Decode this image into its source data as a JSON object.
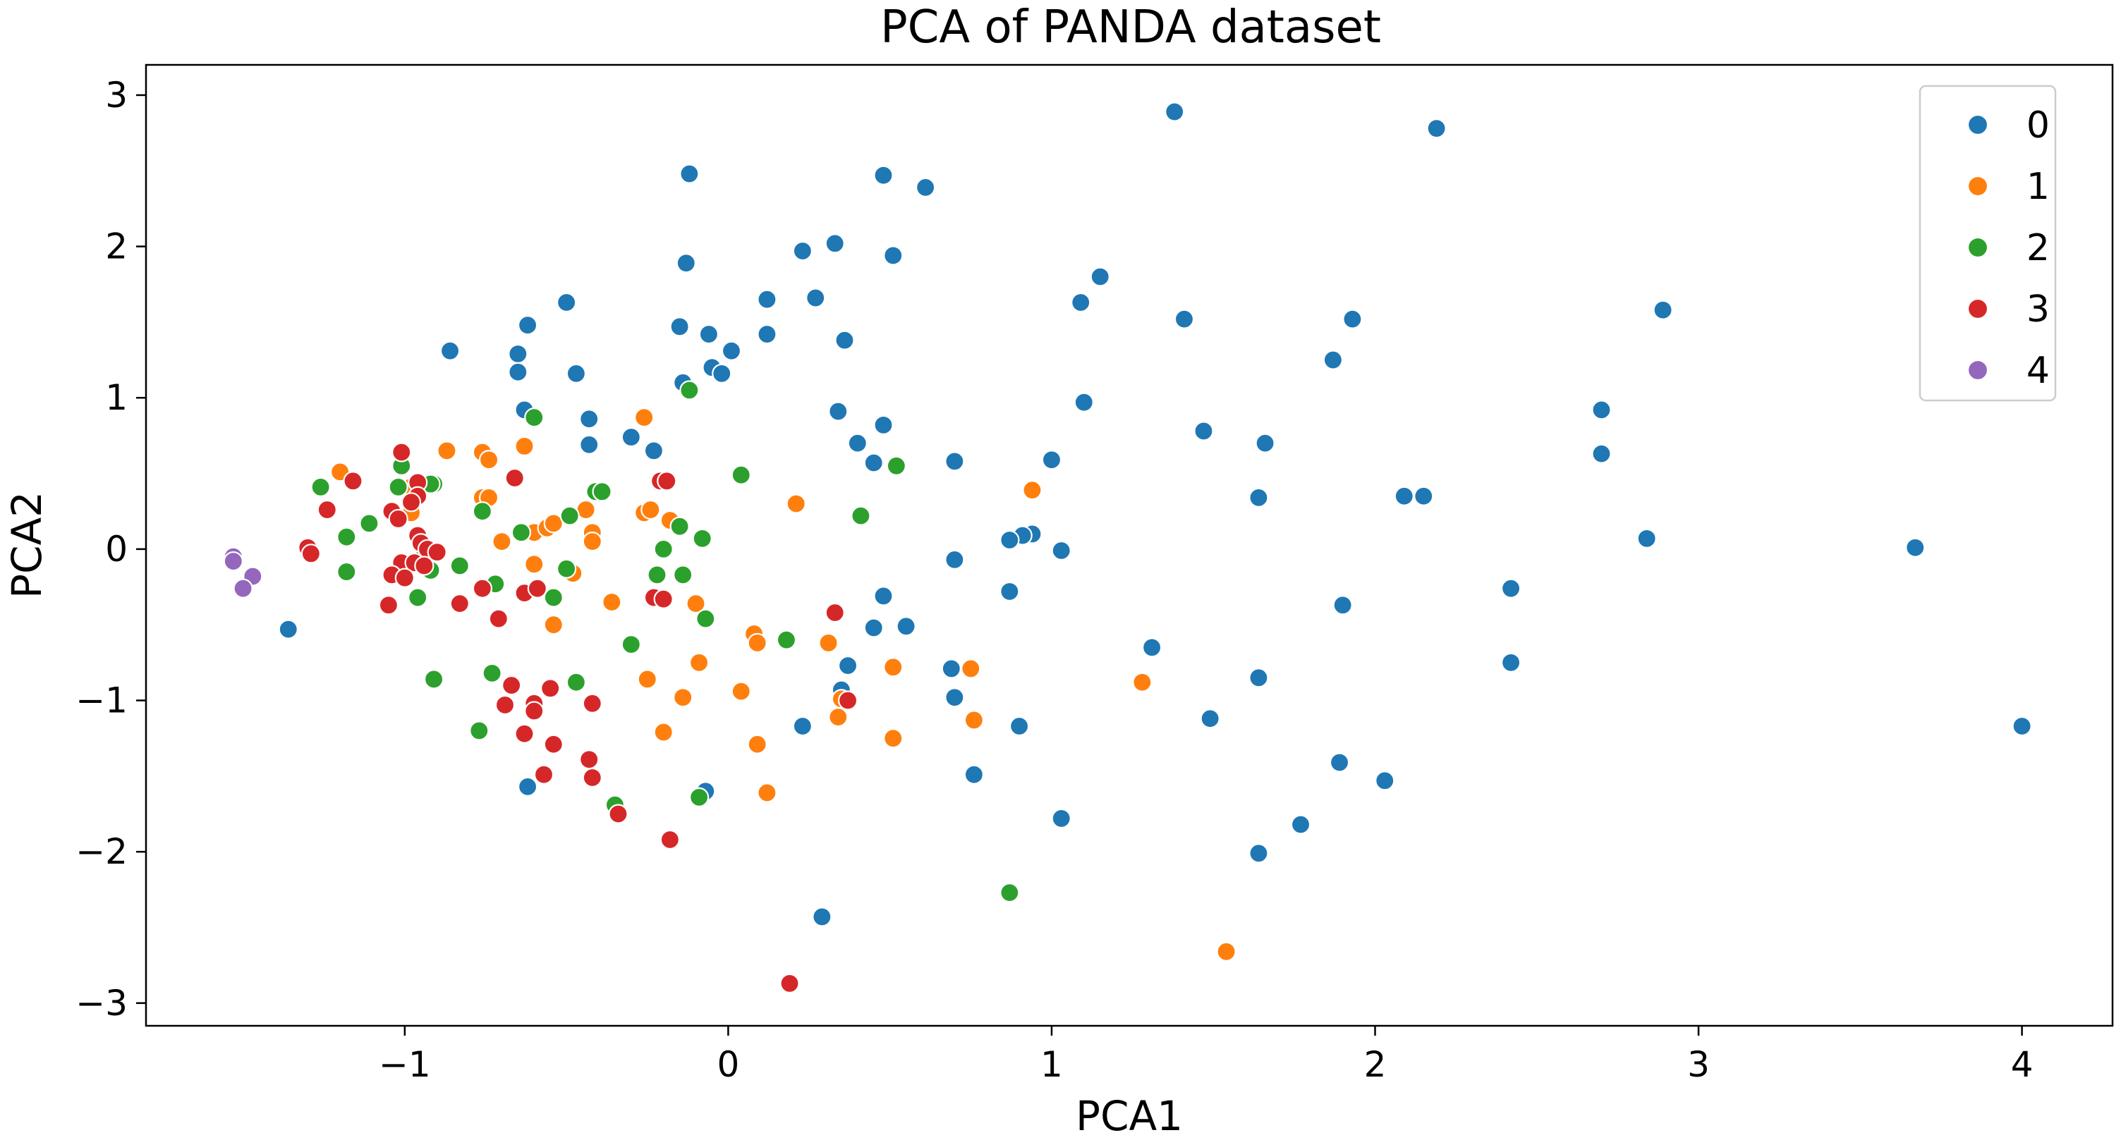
{
  "chart_data": {
    "type": "scatter",
    "title": "PCA of PANDA dataset",
    "xlabel": "PCA1",
    "ylabel": "PCA2",
    "xlim": [
      -1.8,
      4.28
    ],
    "ylim": [
      -3.15,
      3.2
    ],
    "xticks": [
      -1,
      0,
      1,
      2,
      3,
      4
    ],
    "yticks": [
      -3,
      -2,
      -1,
      0,
      1,
      2,
      3
    ],
    "grid": false,
    "legend_position": "top-right",
    "series": [
      {
        "name": "0",
        "color": "#1f77b4",
        "points": [
          [
            1.38,
            2.89
          ],
          [
            2.19,
            2.78
          ],
          [
            -0.12,
            2.48
          ],
          [
            0.48,
            2.47
          ],
          [
            0.61,
            2.39
          ],
          [
            0.33,
            2.02
          ],
          [
            0.23,
            1.97
          ],
          [
            0.51,
            1.94
          ],
          [
            -0.13,
            1.89
          ],
          [
            1.15,
            1.8
          ],
          [
            0.12,
            1.65
          ],
          [
            0.27,
            1.66
          ],
          [
            -0.5,
            1.63
          ],
          [
            1.09,
            1.63
          ],
          [
            2.89,
            1.58
          ],
          [
            1.41,
            1.52
          ],
          [
            1.93,
            1.52
          ],
          [
            -0.62,
            1.48
          ],
          [
            -0.15,
            1.47
          ],
          [
            -0.06,
            1.42
          ],
          [
            0.12,
            1.42
          ],
          [
            0.36,
            1.38
          ],
          [
            -0.86,
            1.31
          ],
          [
            0.01,
            1.31
          ],
          [
            -0.65,
            1.29
          ],
          [
            1.87,
            1.25
          ],
          [
            -0.05,
            1.2
          ],
          [
            -0.65,
            1.17
          ],
          [
            -0.47,
            1.16
          ],
          [
            -0.02,
            1.16
          ],
          [
            -0.14,
            1.1
          ],
          [
            2.7,
            0.92
          ],
          [
            1.1,
            0.97
          ],
          [
            -0.63,
            0.92
          ],
          [
            0.34,
            0.91
          ],
          [
            -0.43,
            0.86
          ],
          [
            0.48,
            0.82
          ],
          [
            1.47,
            0.78
          ],
          [
            -0.3,
            0.74
          ],
          [
            0.4,
            0.7
          ],
          [
            1.66,
            0.7
          ],
          [
            -0.43,
            0.69
          ],
          [
            -0.23,
            0.65
          ],
          [
            2.7,
            0.63
          ],
          [
            1.0,
            0.59
          ],
          [
            0.7,
            0.58
          ],
          [
            0.45,
            0.57
          ],
          [
            1.64,
            0.34
          ],
          [
            2.09,
            0.35
          ],
          [
            2.15,
            0.35
          ],
          [
            0.94,
            0.1
          ],
          [
            0.91,
            0.09
          ],
          [
            0.87,
            0.06
          ],
          [
            2.84,
            0.07
          ],
          [
            3.67,
            0.01
          ],
          [
            1.03,
            -0.01
          ],
          [
            0.7,
            -0.07
          ],
          [
            0.87,
            -0.28
          ],
          [
            2.42,
            -0.26
          ],
          [
            0.48,
            -0.31
          ],
          [
            1.9,
            -0.37
          ],
          [
            0.45,
            -0.52
          ],
          [
            0.55,
            -0.51
          ],
          [
            -1.36,
            -0.53
          ],
          [
            1.31,
            -0.65
          ],
          [
            0.37,
            -0.77
          ],
          [
            0.69,
            -0.79
          ],
          [
            2.42,
            -0.75
          ],
          [
            1.64,
            -0.85
          ],
          [
            0.35,
            -0.93
          ],
          [
            0.7,
            -0.98
          ],
          [
            1.49,
            -1.12
          ],
          [
            0.9,
            -1.17
          ],
          [
            0.23,
            -1.17
          ],
          [
            4.0,
            -1.17
          ],
          [
            1.89,
            -1.41
          ],
          [
            0.76,
            -1.49
          ],
          [
            2.03,
            -1.53
          ],
          [
            -0.62,
            -1.57
          ],
          [
            -0.07,
            -1.6
          ],
          [
            1.03,
            -1.78
          ],
          [
            1.77,
            -1.82
          ],
          [
            1.64,
            -2.01
          ],
          [
            0.29,
            -2.43
          ]
        ]
      },
      {
        "name": "1",
        "color": "#ff7f0e",
        "points": [
          [
            -0.26,
            0.87
          ],
          [
            -1.2,
            0.51
          ],
          [
            -0.87,
            0.65
          ],
          [
            -0.76,
            0.64
          ],
          [
            -0.74,
            0.59
          ],
          [
            -0.63,
            0.68
          ],
          [
            -0.98,
            0.41
          ],
          [
            -0.76,
            0.34
          ],
          [
            -0.74,
            0.34
          ],
          [
            -0.98,
            0.24
          ],
          [
            -0.6,
            0.11
          ],
          [
            -0.56,
            0.14
          ],
          [
            -0.54,
            0.17
          ],
          [
            -0.44,
            0.26
          ],
          [
            -0.42,
            0.11
          ],
          [
            -0.42,
            0.05
          ],
          [
            -0.7,
            0.05
          ],
          [
            -0.26,
            0.24
          ],
          [
            -0.24,
            0.26
          ],
          [
            -0.18,
            0.19
          ],
          [
            0.21,
            0.3
          ],
          [
            0.94,
            0.39
          ],
          [
            -0.6,
            -0.1
          ],
          [
            -0.48,
            -0.16
          ],
          [
            -0.54,
            -0.5
          ],
          [
            -0.36,
            -0.35
          ],
          [
            -0.1,
            -0.36
          ],
          [
            0.08,
            -0.56
          ],
          [
            0.09,
            -0.62
          ],
          [
            0.31,
            -0.62
          ],
          [
            -0.09,
            -0.75
          ],
          [
            0.51,
            -0.78
          ],
          [
            0.75,
            -0.79
          ],
          [
            -0.25,
            -0.86
          ],
          [
            0.04,
            -0.94
          ],
          [
            -0.14,
            -0.98
          ],
          [
            1.28,
            -0.88
          ],
          [
            0.35,
            -0.99
          ],
          [
            0.34,
            -1.11
          ],
          [
            0.76,
            -1.13
          ],
          [
            -0.2,
            -1.21
          ],
          [
            0.51,
            -1.25
          ],
          [
            0.09,
            -1.29
          ],
          [
            0.12,
            -1.61
          ],
          [
            1.54,
            -2.66
          ]
        ]
      },
      {
        "name": "2",
        "color": "#2ca02c",
        "points": [
          [
            -0.6,
            0.87
          ],
          [
            -0.12,
            1.05
          ],
          [
            -1.26,
            0.41
          ],
          [
            -1.01,
            0.55
          ],
          [
            -1.02,
            0.41
          ],
          [
            -0.91,
            0.43
          ],
          [
            -0.92,
            0.43
          ],
          [
            -0.41,
            0.38
          ],
          [
            -0.39,
            0.38
          ],
          [
            0.04,
            0.49
          ],
          [
            0.52,
            0.55
          ],
          [
            -0.76,
            0.25
          ],
          [
            -1.11,
            0.17
          ],
          [
            -1.18,
            0.08
          ],
          [
            -0.64,
            0.11
          ],
          [
            -0.49,
            0.22
          ],
          [
            -0.15,
            0.15
          ],
          [
            0.41,
            0.22
          ],
          [
            -0.08,
            0.07
          ],
          [
            -0.2,
            0.0
          ],
          [
            -0.5,
            -0.13
          ],
          [
            -0.95,
            -0.07
          ],
          [
            -0.83,
            -0.11
          ],
          [
            -0.92,
            -0.14
          ],
          [
            -1.18,
            -0.15
          ],
          [
            -0.72,
            -0.23
          ],
          [
            -0.54,
            -0.32
          ],
          [
            -0.96,
            -0.32
          ],
          [
            -0.14,
            -0.17
          ],
          [
            -0.22,
            -0.17
          ],
          [
            -0.07,
            -0.46
          ],
          [
            -0.3,
            -0.63
          ],
          [
            0.18,
            -0.6
          ],
          [
            -0.73,
            -0.82
          ],
          [
            -0.47,
            -0.88
          ],
          [
            -0.91,
            -0.86
          ],
          [
            -0.77,
            -1.2
          ],
          [
            -0.09,
            -1.64
          ],
          [
            -0.35,
            -1.69
          ],
          [
            0.87,
            -2.27
          ]
        ]
      },
      {
        "name": "3",
        "color": "#d62728",
        "points": [
          [
            -1.01,
            0.64
          ],
          [
            -0.96,
            0.44
          ],
          [
            -0.66,
            0.47
          ],
          [
            -1.16,
            0.45
          ],
          [
            -0.21,
            0.45
          ],
          [
            -0.19,
            0.45
          ],
          [
            -0.96,
            0.35
          ],
          [
            -0.98,
            0.31
          ],
          [
            -1.24,
            0.26
          ],
          [
            -1.04,
            0.25
          ],
          [
            -1.02,
            0.2
          ],
          [
            -0.96,
            0.09
          ],
          [
            -0.95,
            0.04
          ],
          [
            -0.93,
            0.0
          ],
          [
            -0.9,
            -0.02
          ],
          [
            -1.3,
            0.01
          ],
          [
            -1.29,
            -0.03
          ],
          [
            -1.01,
            -0.09
          ],
          [
            -0.97,
            -0.09
          ],
          [
            -0.94,
            -0.11
          ],
          [
            -1.04,
            -0.17
          ],
          [
            -1.0,
            -0.19
          ],
          [
            -0.76,
            -0.26
          ],
          [
            -0.63,
            -0.29
          ],
          [
            -0.59,
            -0.26
          ],
          [
            -0.23,
            -0.32
          ],
          [
            -0.2,
            -0.33
          ],
          [
            -0.83,
            -0.36
          ],
          [
            -1.05,
            -0.37
          ],
          [
            -0.71,
            -0.46
          ],
          [
            0.33,
            -0.42
          ],
          [
            -0.67,
            -0.9
          ],
          [
            -0.55,
            -0.92
          ],
          [
            -0.6,
            -1.02
          ],
          [
            -0.42,
            -1.02
          ],
          [
            -0.69,
            -1.03
          ],
          [
            -0.6,
            -1.07
          ],
          [
            0.37,
            -1.0
          ],
          [
            -0.63,
            -1.22
          ],
          [
            -0.54,
            -1.29
          ],
          [
            -0.43,
            -1.39
          ],
          [
            -0.42,
            -1.51
          ],
          [
            -0.57,
            -1.49
          ],
          [
            -0.34,
            -1.75
          ],
          [
            -0.18,
            -1.92
          ],
          [
            0.19,
            -2.87
          ]
        ]
      },
      {
        "name": "4",
        "color": "#9467bd",
        "points": [
          [
            -1.53,
            -0.05
          ],
          [
            -1.53,
            -0.08
          ],
          [
            -1.47,
            -0.18
          ],
          [
            -1.5,
            -0.26
          ]
        ]
      }
    ]
  }
}
